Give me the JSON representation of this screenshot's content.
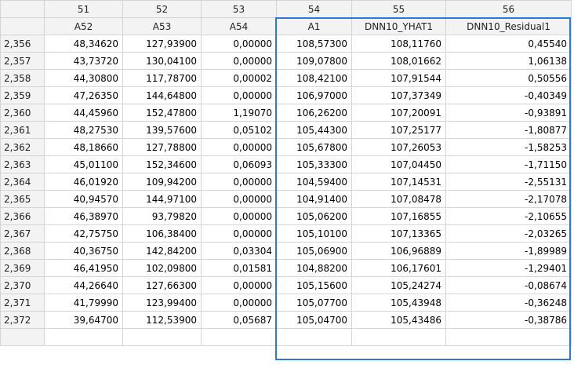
{
  "column_numbers": [
    "51",
    "52",
    "53",
    "54",
    "55",
    "56"
  ],
  "column_names": [
    "A52",
    "A53",
    "A54",
    "A1",
    "DNN10_YHAT1",
    "DNN10_Residual1"
  ],
  "rows": [
    {
      "id": "2,356",
      "cells": [
        "48,34620",
        "127,93900",
        "0,00000",
        "108,57300",
        "108,11760",
        "0,45540"
      ]
    },
    {
      "id": "2,357",
      "cells": [
        "43,73720",
        "130,04100",
        "0,00000",
        "109,07800",
        "108,01662",
        "1,06138"
      ]
    },
    {
      "id": "2,358",
      "cells": [
        "44,30800",
        "117,78700",
        "0,00002",
        "108,42100",
        "107,91544",
        "0,50556"
      ]
    },
    {
      "id": "2,359",
      "cells": [
        "47,26350",
        "144,64800",
        "0,00000",
        "106,97000",
        "107,37349",
        "-0,40349"
      ]
    },
    {
      "id": "2,360",
      "cells": [
        "44,45960",
        "152,47800",
        "1,19070",
        "106,26200",
        "107,20091",
        "-0,93891"
      ]
    },
    {
      "id": "2,361",
      "cells": [
        "48,27530",
        "139,57600",
        "0,05102",
        "105,44300",
        "107,25177",
        "-1,80877"
      ]
    },
    {
      "id": "2,362",
      "cells": [
        "48,18660",
        "127,78800",
        "0,00000",
        "105,67800",
        "107,26053",
        "-1,58253"
      ]
    },
    {
      "id": "2,363",
      "cells": [
        "45,01100",
        "152,34600",
        "0,06093",
        "105,33300",
        "107,04450",
        "-1,71150"
      ]
    },
    {
      "id": "2,364",
      "cells": [
        "46,01920",
        "109,94200",
        "0,00000",
        "104,59400",
        "107,14531",
        "-2,55131"
      ]
    },
    {
      "id": "2,365",
      "cells": [
        "40,94570",
        "144,97100",
        "0,00000",
        "104,91400",
        "107,08478",
        "-2,17078"
      ]
    },
    {
      "id": "2,366",
      "cells": [
        "46,38970",
        "93,79820",
        "0,00000",
        "105,06200",
        "107,16855",
        "-2,10655"
      ]
    },
    {
      "id": "2,367",
      "cells": [
        "42,75750",
        "106,38400",
        "0,00000",
        "105,10100",
        "107,13365",
        "-2,03265"
      ]
    },
    {
      "id": "2,368",
      "cells": [
        "40,36750",
        "142,84200",
        "0,03304",
        "105,06900",
        "106,96889",
        "-1,89989"
      ]
    },
    {
      "id": "2,369",
      "cells": [
        "46,41950",
        "102,09800",
        "0,01581",
        "104,88200",
        "106,17601",
        "-1,29401"
      ]
    },
    {
      "id": "2,370",
      "cells": [
        "44,26640",
        "127,66300",
        "0,00000",
        "105,15600",
        "105,24274",
        "-0,08674"
      ]
    },
    {
      "id": "2,371",
      "cells": [
        "41,79990",
        "123,99400",
        "0,00000",
        "105,07700",
        "105,43948",
        "-0,36248"
      ]
    },
    {
      "id": "2,372",
      "cells": [
        "39,64700",
        "112,53900",
        "0,05687",
        "105,04700",
        "105,43486",
        "-0,38786"
      ]
    }
  ],
  "colors": {
    "selection_border": "#2a7bd6",
    "header_bg": "#f3f3f3",
    "grid_line": "#d4d4d4"
  }
}
